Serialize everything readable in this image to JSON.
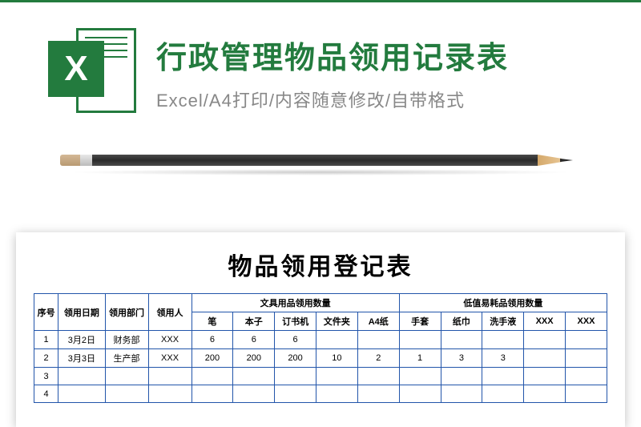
{
  "header": {
    "excel_letter": "X",
    "main_title": "行政管理物品领用记录表",
    "subtitle": "Excel/A4打印/内容随意修改/自带格式"
  },
  "sheet": {
    "title": "物品领用登记表",
    "group1_label": "文具用品领用数量",
    "group2_label": "低值易耗品领用数量",
    "headers": {
      "seq": "序号",
      "date": "领用日期",
      "dept": "领用部门",
      "person": "领用人",
      "items_group1": [
        "笔",
        "本子",
        "订书机",
        "文件夹",
        "A4纸"
      ],
      "items_group2": [
        "手套",
        "纸巾",
        "洗手液",
        "XXX",
        "XXX"
      ]
    },
    "rows": [
      {
        "seq": "1",
        "date": "3月2日",
        "dept": "财务部",
        "person": "XXX",
        "g1": [
          "6",
          "6",
          "6",
          "",
          ""
        ],
        "g2": [
          "",
          "",
          "",
          "",
          ""
        ]
      },
      {
        "seq": "2",
        "date": "3月3日",
        "dept": "生产部",
        "person": "XXX",
        "g1": [
          "200",
          "200",
          "200",
          "10",
          "2"
        ],
        "g2": [
          "1",
          "3",
          "3",
          "",
          ""
        ]
      },
      {
        "seq": "3",
        "date": "",
        "dept": "",
        "person": "",
        "g1": [
          "",
          "",
          "",
          "",
          ""
        ],
        "g2": [
          "",
          "",
          "",
          "",
          ""
        ]
      },
      {
        "seq": "4",
        "date": "",
        "dept": "",
        "person": "",
        "g1": [
          "",
          "",
          "",
          "",
          ""
        ],
        "g2": [
          "",
          "",
          "",
          "",
          ""
        ]
      }
    ]
  },
  "colors": {
    "brand_green": "#237b3e",
    "subtitle_gray": "#888888",
    "table_border": "#2255aa",
    "white": "#ffffff",
    "black": "#000000"
  }
}
